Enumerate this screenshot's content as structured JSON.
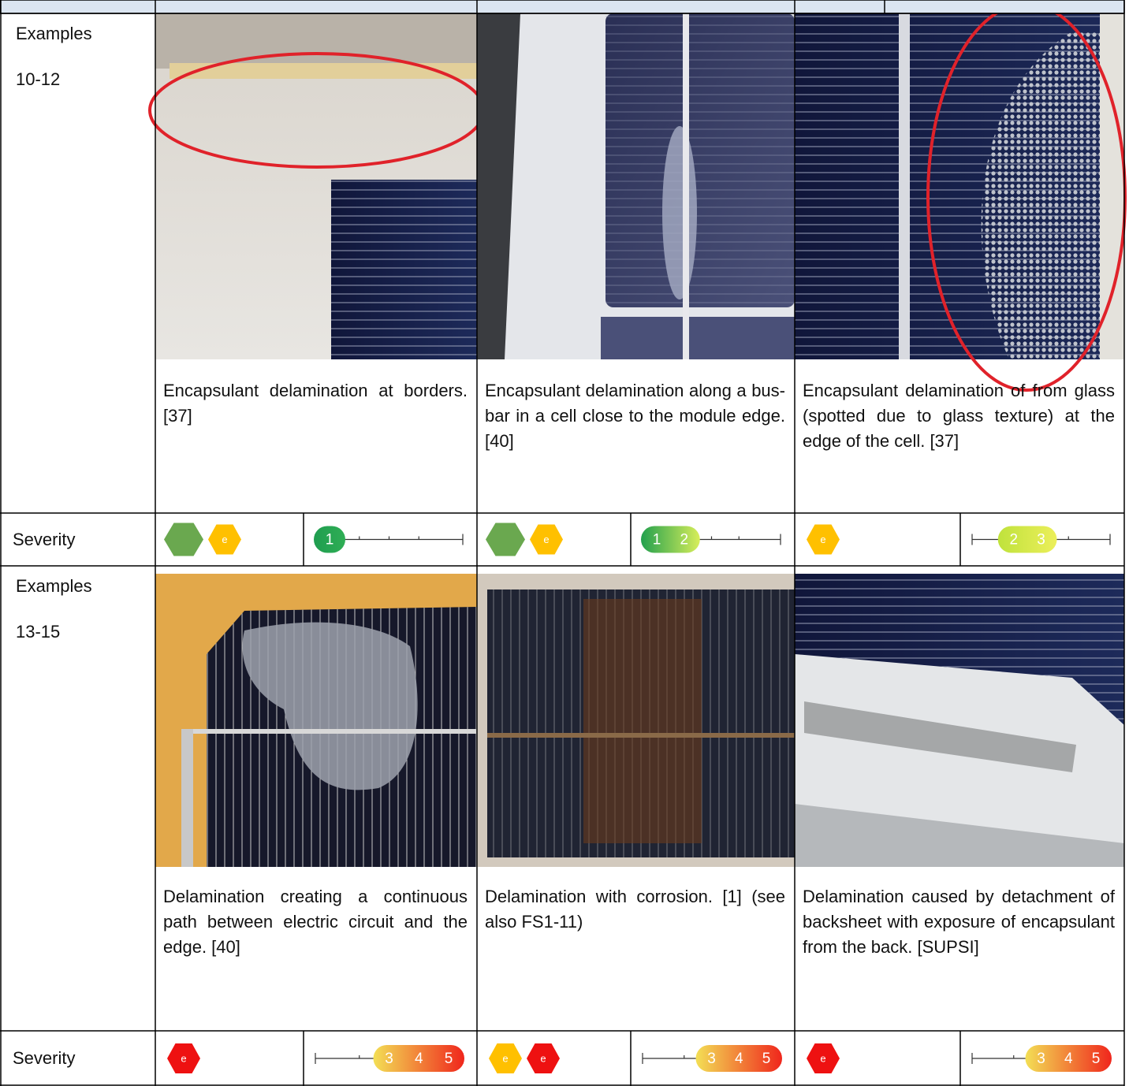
{
  "rows": [
    {
      "label": "Examples",
      "sublabel": "10-12",
      "severity_label": "Severity",
      "examples": [
        {
          "caption": "Encapsulant delamination at bor­ders. [37]",
          "severity": {
            "hexagons": [
              {
                "color": "#6aa84f"
              },
              {
                "color": "#ffc000",
                "label": "e"
              }
            ],
            "levels": [
              1
            ],
            "colors": [
              "#1f9d4f",
              "#2fae55"
            ]
          }
        },
        {
          "caption": "Encapsulant delamination along a bus-bar in a cell close to the module edge. [40]",
          "severity": {
            "hexagons": [
              {
                "color": "#6aa84f"
              },
              {
                "color": "#ffc000",
                "label": "e"
              }
            ],
            "levels": [
              1,
              2
            ],
            "colors": [
              "#22a04e",
              "#d8ee5a"
            ]
          }
        },
        {
          "caption": "Encapsulant delamination of from glass (spotted due to glass tex­ture) at the edge of the cell. [37]",
          "severity": {
            "hexagons": [
              {
                "color": "#ffc000",
                "label": "e"
              }
            ],
            "levels": [
              2,
              3
            ],
            "colors": [
              "#bfe23c",
              "#ecef5a"
            ]
          }
        }
      ]
    },
    {
      "label": "Examples",
      "sublabel": "13-15",
      "severity_label": "Severity",
      "examples": [
        {
          "caption": "Delamination creating a continu­ous path between electric circuit and the edge. [40]",
          "severity": {
            "hexagons": [
              {
                "color": "#ee1111",
                "label": "e"
              }
            ],
            "levels": [
              3,
              4,
              5
            ],
            "colors": [
              "#f3df55",
              "#f0261c"
            ]
          }
        },
        {
          "caption": "Delamination with corrosion. [1] (see also FS1-11)",
          "severity": {
            "hexagons": [
              {
                "color": "#ffc000",
                "label": "e"
              },
              {
                "color": "#ee1111",
                "label": "e"
              }
            ],
            "levels": [
              3,
              4,
              5
            ],
            "colors": [
              "#f3df55",
              "#f0261c"
            ]
          }
        },
        {
          "caption": "Delamination caused by detach­ment of backsheet with exposure of encapsulant from the back. [SUPSI]",
          "severity": {
            "hexagons": [
              {
                "color": "#ee1111",
                "label": "e"
              }
            ],
            "levels": [
              3,
              4,
              5
            ],
            "colors": [
              "#f3df55",
              "#f0261c"
            ]
          }
        }
      ]
    }
  ]
}
